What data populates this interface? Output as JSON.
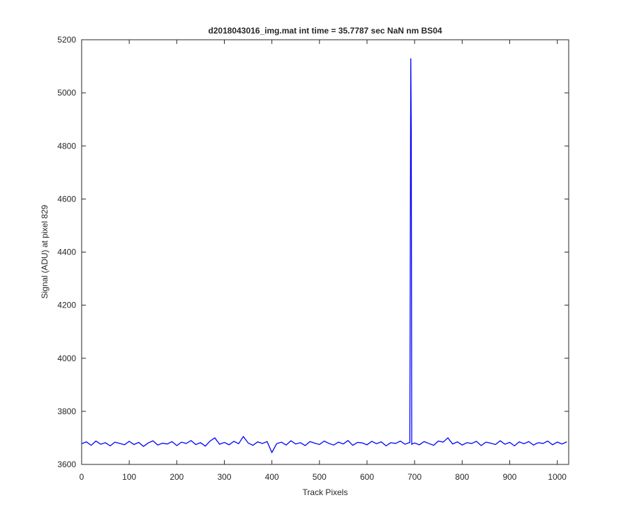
{
  "chart_data": {
    "type": "line",
    "title": "d2018043016_img.mat int time = 35.7787 sec  NaN nm BS04",
    "x_label": "Track Pixels",
    "y_label": "Signal (ADU) at pixel 829",
    "xlim": [
      0,
      1024
    ],
    "ylim": [
      3600,
      5200
    ],
    "xticks": [
      0,
      100,
      200,
      300,
      400,
      500,
      600,
      700,
      800,
      900,
      1000
    ],
    "yticks": [
      3600,
      3800,
      4000,
      4200,
      4400,
      4600,
      4800,
      5000,
      5200
    ],
    "grid": false,
    "series": [
      {
        "color": "#0000ff",
        "x": [
          0,
          10,
          20,
          30,
          40,
          50,
          60,
          70,
          80,
          90,
          100,
          110,
          120,
          130,
          140,
          150,
          160,
          170,
          180,
          190,
          200,
          210,
          220,
          230,
          240,
          250,
          260,
          270,
          280,
          290,
          300,
          310,
          320,
          330,
          340,
          350,
          360,
          370,
          380,
          390,
          400,
          410,
          420,
          430,
          440,
          450,
          460,
          470,
          480,
          490,
          500,
          510,
          520,
          530,
          540,
          550,
          560,
          570,
          580,
          590,
          600,
          610,
          620,
          630,
          640,
          650,
          660,
          670,
          680,
          690,
          692,
          693,
          694,
          700,
          710,
          720,
          730,
          740,
          750,
          760,
          770,
          780,
          790,
          800,
          810,
          820,
          830,
          840,
          850,
          860,
          870,
          880,
          890,
          900,
          910,
          920,
          930,
          940,
          950,
          960,
          970,
          980,
          990,
          1000,
          1010,
          1020
        ],
        "values": [
          3678,
          3685,
          3672,
          3688,
          3676,
          3682,
          3670,
          3684,
          3679,
          3674,
          3687,
          3675,
          3683,
          3668,
          3681,
          3689,
          3673,
          3680,
          3677,
          3686,
          3671,
          3684,
          3679,
          3690,
          3675,
          3682,
          3669,
          3688,
          3700,
          3676,
          3683,
          3674,
          3687,
          3678,
          3705,
          3681,
          3672,
          3685,
          3679,
          3686,
          3645,
          3678,
          3684,
          3673,
          3689,
          3677,
          3682,
          3671,
          3686,
          3680,
          3675,
          3688,
          3679,
          3673,
          3684,
          3677,
          3690,
          3672,
          3683,
          3681,
          3674,
          3687,
          3678,
          3685,
          3670,
          3682,
          3679,
          3688,
          3676,
          3683,
          5130,
          4850,
          3676,
          3681,
          3674,
          3686,
          3679,
          3672,
          3688,
          3684,
          3700,
          3677,
          3685,
          3673,
          3682,
          3679,
          3687,
          3671,
          3684,
          3680,
          3675,
          3689,
          3676,
          3683,
          3670,
          3685,
          3678,
          3686,
          3673,
          3682,
          3679,
          3688,
          3674,
          3684,
          3677,
          3685
        ]
      }
    ]
  }
}
